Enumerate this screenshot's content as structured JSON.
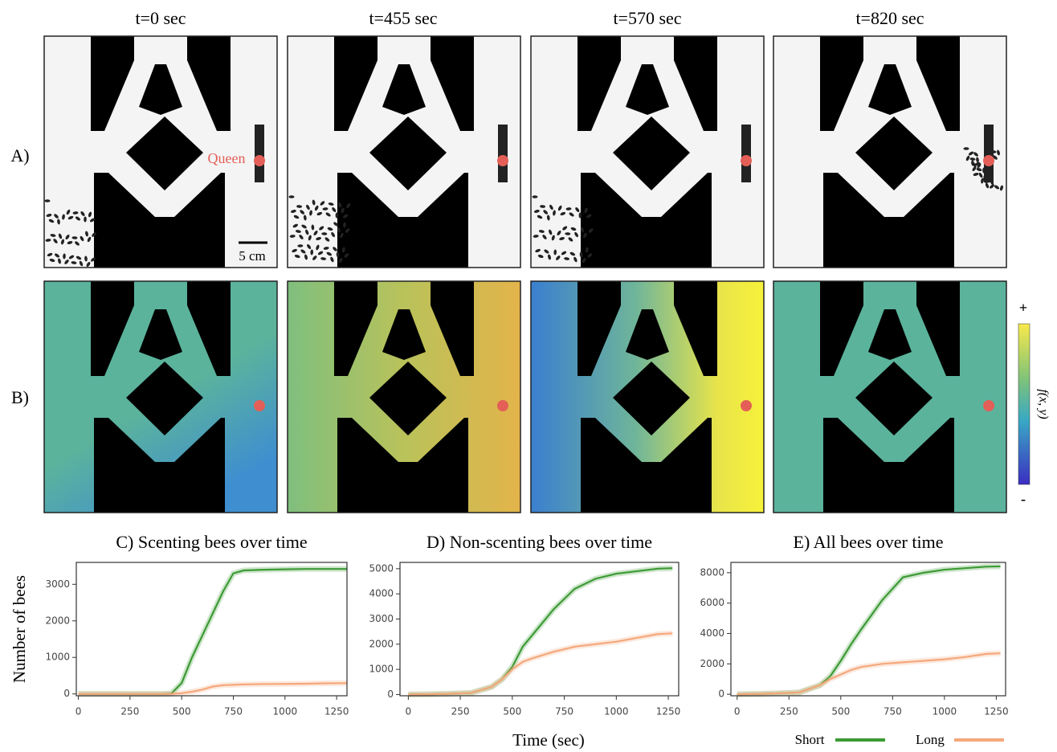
{
  "figure": {
    "times": [
      "t=0 sec",
      "t=455 sec",
      "t=570 sec",
      "t=820 sec"
    ],
    "row_labels": [
      "A)",
      "B)"
    ],
    "queen_label": "Queen",
    "scale_bar": "5 cm",
    "colorbar": {
      "max_label": "+",
      "min_label": "-",
      "label": "f(x, y)"
    },
    "y_label": "Number of bees",
    "x_label": "Time (sec)"
  },
  "chart_data": [
    {
      "type": "line",
      "title": "C) Scenting bees over time",
      "x": [
        0,
        100,
        200,
        300,
        400,
        450,
        500,
        550,
        600,
        650,
        700,
        750,
        800,
        900,
        1000,
        1100,
        1200,
        1300
      ],
      "series": [
        {
          "name": "Short",
          "color": "#3c9a34",
          "values": [
            0,
            0,
            0,
            0,
            0,
            10,
            300,
            1000,
            1600,
            2200,
            2800,
            3300,
            3380,
            3400,
            3410,
            3420,
            3420,
            3420
          ]
        },
        {
          "name": "Long",
          "color": "#f5a87c",
          "values": [
            0,
            0,
            0,
            0,
            0,
            0,
            20,
            60,
            120,
            200,
            240,
            250,
            260,
            270,
            275,
            280,
            290,
            295
          ]
        }
      ],
      "xlim": [
        -10,
        1300
      ],
      "xticks": [
        0,
        250,
        500,
        750,
        1000,
        1250
      ],
      "ylim": [
        -50,
        3600
      ],
      "yticks": [
        0,
        1000,
        2000,
        3000
      ]
    },
    {
      "type": "line",
      "title": "D) Non-scenting bees over time",
      "x": [
        0,
        100,
        200,
        300,
        400,
        450,
        500,
        550,
        600,
        700,
        800,
        900,
        1000,
        1100,
        1200,
        1270
      ],
      "series": [
        {
          "name": "Short",
          "color": "#3c9a34",
          "values": [
            0,
            10,
            30,
            60,
            300,
            600,
            1100,
            1900,
            2400,
            3400,
            4200,
            4600,
            4800,
            4900,
            5000,
            5020
          ]
        },
        {
          "name": "Long",
          "color": "#f5a87c",
          "values": [
            0,
            10,
            30,
            60,
            300,
            600,
            1000,
            1300,
            1450,
            1700,
            1900,
            2000,
            2100,
            2250,
            2400,
            2430
          ]
        }
      ],
      "xlim": [
        -40,
        1300
      ],
      "xticks": [
        0,
        250,
        500,
        750,
        1000,
        1250
      ],
      "ylim": [
        -50,
        5250
      ],
      "yticks": [
        0,
        1000,
        2000,
        3000,
        4000,
        5000
      ]
    },
    {
      "type": "line",
      "title": "E) All bees over time",
      "x": [
        0,
        100,
        200,
        300,
        400,
        450,
        500,
        550,
        600,
        700,
        800,
        900,
        1000,
        1100,
        1200,
        1270
      ],
      "series": [
        {
          "name": "Short",
          "color": "#3c9a34",
          "values": [
            0,
            20,
            60,
            120,
            600,
            1200,
            2200,
            3300,
            4300,
            6200,
            7700,
            8000,
            8200,
            8300,
            8400,
            8420
          ]
        },
        {
          "name": "Long",
          "color": "#f5a87c",
          "values": [
            0,
            20,
            60,
            120,
            600,
            1000,
            1300,
            1600,
            1800,
            2000,
            2100,
            2200,
            2300,
            2450,
            2650,
            2700
          ]
        }
      ],
      "xlim": [
        -30,
        1295
      ],
      "xticks": [
        0,
        250,
        500,
        750,
        1000,
        1250
      ],
      "ylim": [
        -100,
        8680
      ],
      "yticks": [
        0,
        2000,
        4000,
        6000,
        8000
      ]
    }
  ]
}
